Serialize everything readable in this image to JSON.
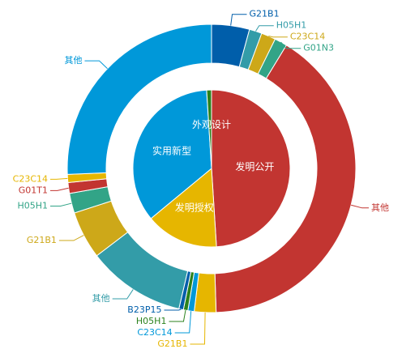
{
  "chart_data": {
    "type": "pie",
    "subtype": "nested-donut",
    "inner": [
      {
        "name": "发明公开",
        "value": 49.0,
        "color": "#c23531"
      },
      {
        "name": "发明授权",
        "value": 15.0,
        "color": "#e6b600"
      },
      {
        "name": "实用新型",
        "value": 35.0,
        "color": "#0098d9"
      },
      {
        "name": "外观设计",
        "value": 1.0,
        "color": "#2b821d"
      }
    ],
    "outer": [
      {
        "name": "G21B1",
        "value": 4.2,
        "color": "#005eaa",
        "group": "发明公开"
      },
      {
        "name": "H05H1",
        "value": 1.4,
        "color": "#339ca8",
        "group": "发明公开"
      },
      {
        "name": "C23C14",
        "value": 1.6,
        "color": "#cda819",
        "group": "发明公开"
      },
      {
        "name": "G01N3",
        "value": 1.4,
        "color": "#32a487",
        "group": "发明公开"
      },
      {
        "name": "其他",
        "value": 40.4,
        "color": "#c23531",
        "group": "发明公开"
      },
      {
        "name": "G21B1",
        "value": 2.4,
        "color": "#e6b600",
        "group": "发明授权"
      },
      {
        "name": "C23C14",
        "value": 0.7,
        "color": "#0098d9",
        "group": "发明授权"
      },
      {
        "name": "H05H1",
        "value": 0.5,
        "color": "#2b821d",
        "group": "发明授权"
      },
      {
        "name": "B23P15",
        "value": 0.5,
        "color": "#005eaa",
        "group": "发明授权"
      },
      {
        "name": "其他",
        "value": 10.9,
        "color": "#339ca8",
        "group": "发明授权"
      },
      {
        "name": "G21B1",
        "value": 5.3,
        "color": "#cda819",
        "group": "实用新型"
      },
      {
        "name": "H05H1",
        "value": 2.2,
        "color": "#32a487",
        "group": "实用新型"
      },
      {
        "name": "G01T1",
        "value": 1.2,
        "color": "#c23531",
        "group": "实用新型"
      },
      {
        "name": "C23C14",
        "value": 0.9,
        "color": "#e6b600",
        "group": "实用新型"
      },
      {
        "name": "其他",
        "value": 25.4,
        "color": "#0098d9",
        "group": "实用新型"
      }
    ]
  }
}
